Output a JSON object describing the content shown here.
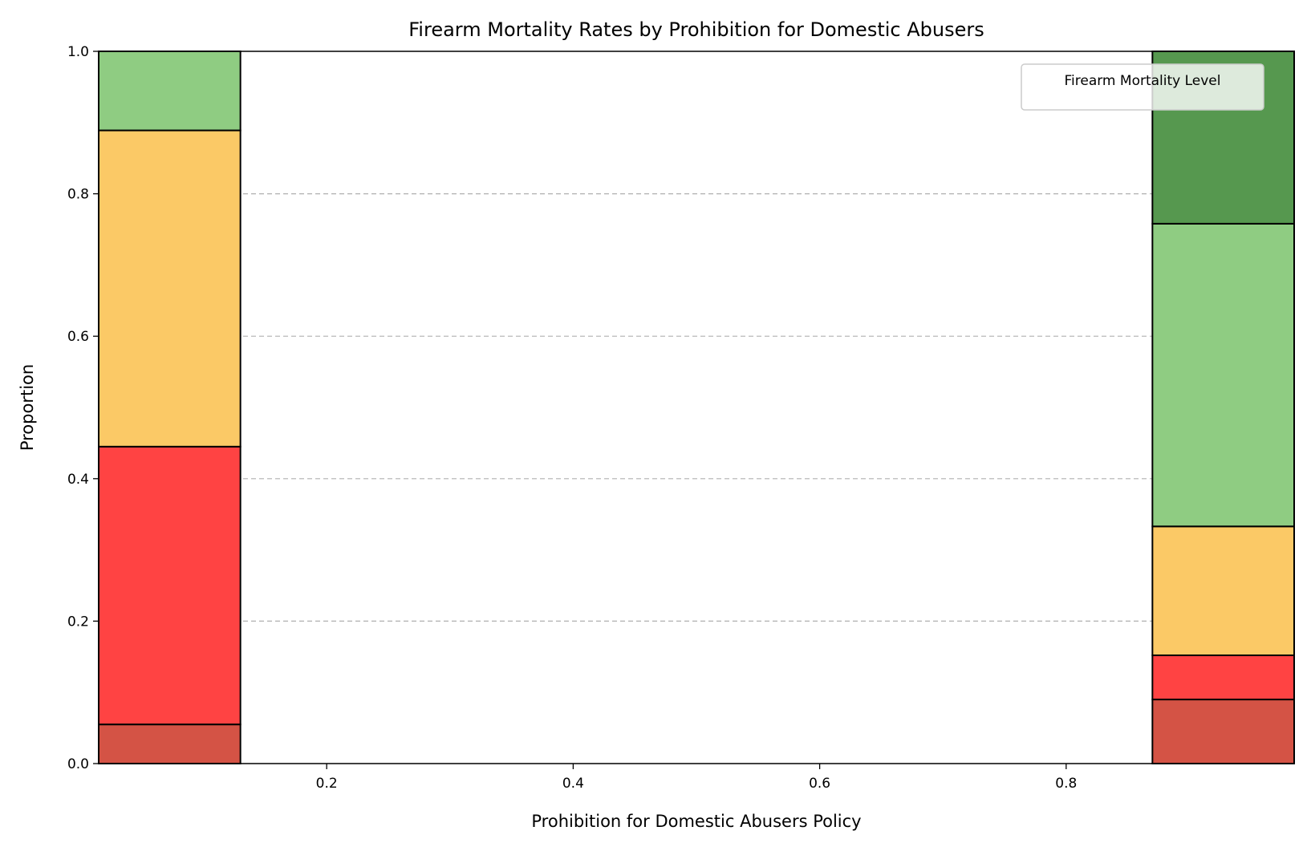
{
  "chart_data": {
    "type": "bar",
    "stacked": "fill",
    "title": "Firearm Mortality Rates by Prohibition for Domestic Abusers",
    "xlabel": "Prohibition for Domestic Abusers Policy",
    "ylabel": "Proportion",
    "xlim": [
      0.015,
      0.985
    ],
    "ylim": [
      0,
      1
    ],
    "xticks": [
      "0.2",
      "0.4",
      "0.6",
      "0.8"
    ],
    "xtick_values": [
      0.2,
      0.4,
      0.6,
      0.8
    ],
    "yticks": [
      "0.0",
      "0.2",
      "0.4",
      "0.6",
      "0.8",
      "1.0"
    ],
    "ytick_values": [
      0,
      0.2,
      0.4,
      0.6,
      0.8,
      1.0
    ],
    "grid": {
      "axis": "y",
      "style": "dashed"
    },
    "legend": {
      "title": "Firearm Mortality Level",
      "placement": "top-right",
      "entries": []
    },
    "bins": [
      {
        "x_start": 0.015,
        "x_end": 0.13,
        "segments": [
          {
            "bottom": 0.0,
            "top": 0.055,
            "color": "#d45345"
          },
          {
            "bottom": 0.055,
            "top": 0.445,
            "color": "#ff4343"
          },
          {
            "bottom": 0.445,
            "top": 0.889,
            "color": "#fbc966"
          },
          {
            "bottom": 0.889,
            "top": 1.0,
            "color": "#8fcc82"
          }
        ]
      },
      {
        "x_start": 0.87,
        "x_end": 0.985,
        "segments": [
          {
            "bottom": 0.0,
            "top": 0.09,
            "color": "#d45345"
          },
          {
            "bottom": 0.09,
            "top": 0.152,
            "color": "#ff4343"
          },
          {
            "bottom": 0.152,
            "top": 0.333,
            "color": "#fbc966"
          },
          {
            "bottom": 0.333,
            "top": 0.758,
            "color": "#8fcc82"
          },
          {
            "bottom": 0.758,
            "top": 1.0,
            "color": "#56984f"
          }
        ]
      }
    ]
  }
}
